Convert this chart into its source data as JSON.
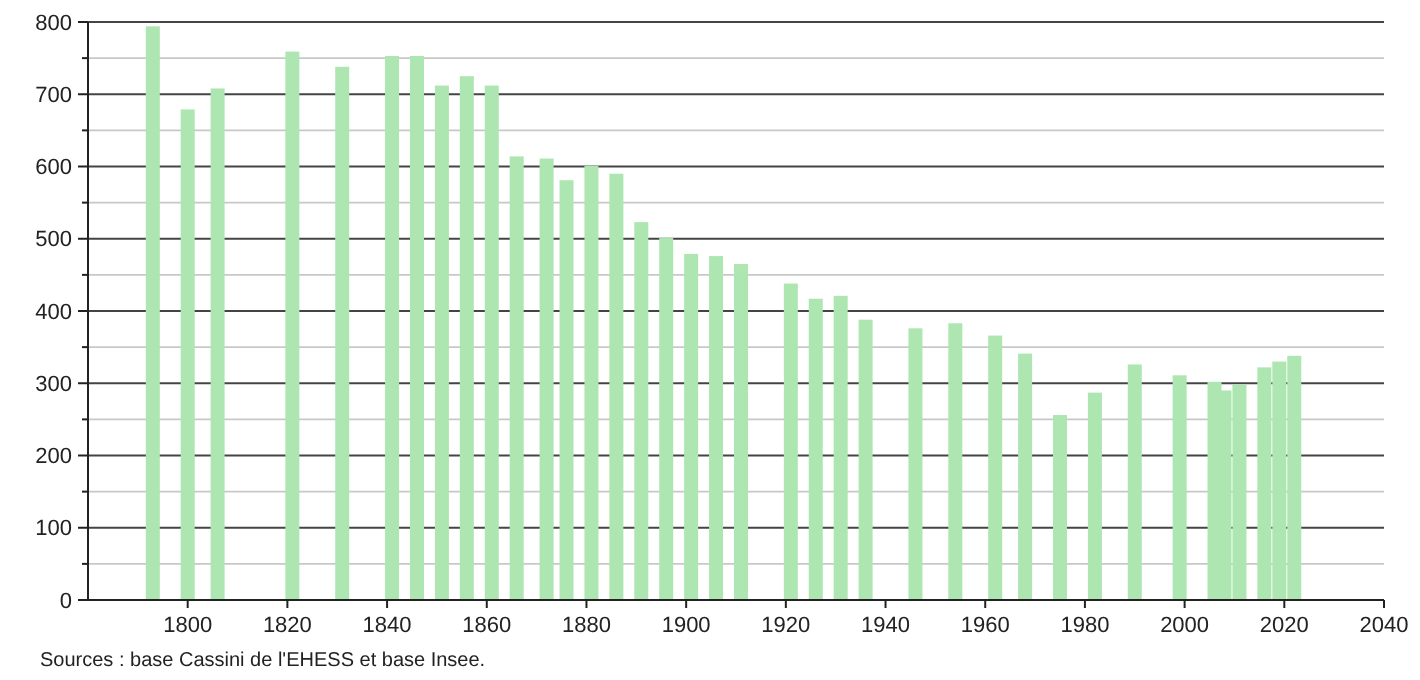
{
  "chart_data": {
    "type": "bar",
    "x": [
      1793,
      1800,
      1806,
      1821,
      1831,
      1841,
      1846,
      1851,
      1856,
      1861,
      1866,
      1872,
      1876,
      1881,
      1886,
      1891,
      1896,
      1901,
      1906,
      1911,
      1921,
      1926,
      1931,
      1936,
      1946,
      1954,
      1962,
      1968,
      1975,
      1982,
      1990,
      1999,
      2006,
      2008,
      2011,
      2016,
      2019,
      2022
    ],
    "values": [
      794,
      679,
      708,
      759,
      738,
      753,
      753,
      712,
      725,
      712,
      614,
      611,
      581,
      601,
      590,
      523,
      501,
      479,
      476,
      465,
      438,
      417,
      421,
      388,
      376,
      383,
      366,
      341,
      256,
      287,
      326,
      311,
      302,
      290,
      298,
      322,
      330,
      338
    ],
    "color": "#ade6b0",
    "xlim": [
      1780,
      2040
    ],
    "xticks": [
      1800,
      1820,
      1840,
      1860,
      1880,
      1900,
      1920,
      1940,
      1960,
      1980,
      2000,
      2020,
      2040
    ],
    "ylim": [
      0,
      800
    ],
    "yticks": [
      0,
      {
        "value": 50,
        "label": null
      },
      100,
      {
        "value": 150,
        "label": null
      },
      200,
      {
        "value": 250,
        "label": null
      },
      300,
      {
        "value": 350,
        "label": null
      },
      400,
      {
        "value": 450,
        "label": null
      },
      500,
      {
        "value": 550,
        "label": null
      },
      600,
      {
        "value": 650,
        "label": null
      },
      700,
      {
        "value": 750,
        "label": null
      },
      800
    ],
    "grid": true,
    "annotations": [
      "Sources : base Cassini de l'EHESS et base Insee."
    ]
  }
}
